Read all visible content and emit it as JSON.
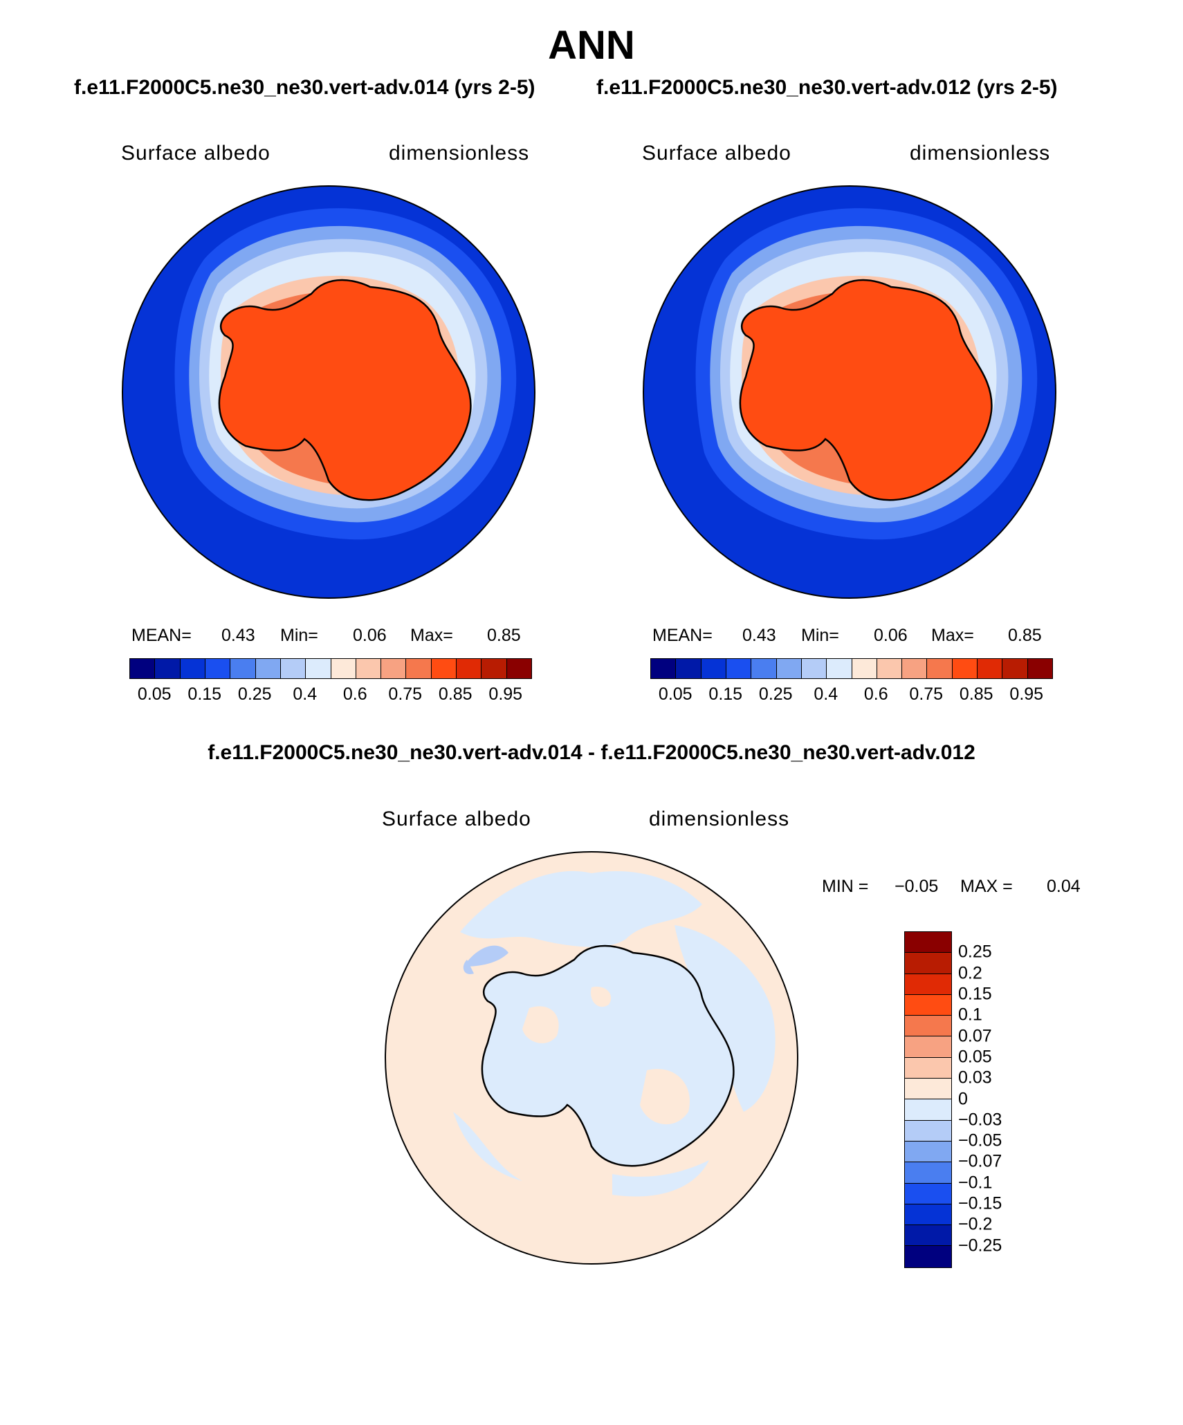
{
  "main_title": "ANN",
  "header": {
    "left": "f.e11.F2000C5.ne30_ne30.vert-adv.014 (yrs 2-5)",
    "right": "f.e11.F2000C5.ne30_ne30.vert-adv.012 (yrs 2-5)"
  },
  "panel_left": {
    "variable": "Surface albedo",
    "units": "dimensionless",
    "mean_label": "MEAN=",
    "mean": "0.43",
    "min_label": "Min=",
    "min": "0.06",
    "max_label": "Max=",
    "max": "0.85"
  },
  "panel_right": {
    "variable": "Surface albedo",
    "units": "dimensionless",
    "mean_label": "MEAN=",
    "mean": "0.43",
    "min_label": "Min=",
    "min": "0.06",
    "max_label": "Max=",
    "max": "0.85"
  },
  "colorbar_levels": [
    "0.05",
    "0.15",
    "0.25",
    "0.4",
    "0.6",
    "0.75",
    "0.85",
    "0.95"
  ],
  "colorbar_colors": [
    "#00007f",
    "#0019a8",
    "#0533d6",
    "#1a4ff0",
    "#4a7ef0",
    "#80a8f2",
    "#b4ccf7",
    "#dcebfc",
    "#fde9d9",
    "#fbc7ad",
    "#f7a282",
    "#f5784d",
    "#ff4c12",
    "#e02a05",
    "#b81c02",
    "#8a0000"
  ],
  "diff_title": "f.e11.F2000C5.ne30_ne30.vert-adv.014 - f.e11.F2000C5.ne30_ne30.vert-adv.012",
  "panel_diff": {
    "variable": "Surface albedo",
    "units": "dimensionless",
    "min_label": "MIN =",
    "min": "−0.05",
    "max_label": "MAX =",
    "max": "0.04"
  },
  "diff_colorbar_levels": [
    "0.25",
    "0.2",
    "0.15",
    "0.1",
    "0.07",
    "0.05",
    "0.03",
    "0",
    "−0.03",
    "−0.05",
    "−0.07",
    "−0.1",
    "−0.15",
    "−0.2",
    "−0.25"
  ],
  "diff_colorbar_colors": [
    "#8a0000",
    "#b81c02",
    "#e02a05",
    "#ff4c12",
    "#f5784d",
    "#f7a282",
    "#fbc7ad",
    "#fde9d9",
    "#dcebfc",
    "#b4ccf7",
    "#80a8f2",
    "#4a7ef0",
    "#1a4ff0",
    "#0533d6",
    "#0019a8",
    "#00007f"
  ]
}
